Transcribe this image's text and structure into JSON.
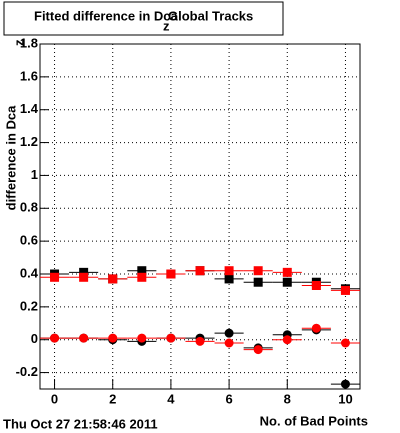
{
  "chart_data": {
    "type": "scatter",
    "title": "Fitted difference in Dca",
    "title_subscript": "z",
    "title_suffix": "Global Tracks",
    "y_label": "difference in Dca",
    "y_label_subscript": "z",
    "x_label": "No. of Bad Points",
    "timestamp": "Thu Oct 27 21:58:46 2011",
    "x": [
      0,
      1,
      2,
      3,
      4,
      5,
      6,
      7,
      8,
      9,
      10
    ],
    "series": [
      {
        "color": "#000000",
        "marker": "square",
        "values": [
          0.4,
          0.41,
          0.37,
          0.42,
          0.4,
          0.42,
          0.37,
          0.35,
          0.35,
          0.35,
          0.31
        ]
      },
      {
        "color": "#ff0000",
        "marker": "square",
        "values": [
          0.38,
          0.38,
          0.37,
          0.38,
          0.4,
          0.42,
          0.42,
          0.42,
          0.41,
          0.33,
          0.3
        ]
      },
      {
        "color": "#000000",
        "marker": "circle",
        "values": [
          0.01,
          0.01,
          0.0,
          -0.01,
          0.01,
          0.01,
          0.04,
          -0.05,
          0.03,
          0.06,
          -0.27
        ]
      },
      {
        "color": "#ff0000",
        "marker": "circle",
        "values": [
          0.01,
          0.01,
          0.01,
          0.01,
          0.01,
          -0.01,
          -0.02,
          -0.06,
          0.0,
          0.07,
          -0.02
        ]
      }
    ],
    "xlim": [
      -0.5,
      10.5
    ],
    "ylim": [
      -0.3,
      1.8
    ],
    "xticks": [
      0,
      2,
      4,
      6,
      8,
      10
    ],
    "yticks": [
      -0.2,
      0,
      0.2,
      0.4,
      0.6,
      0.8,
      1,
      1.2,
      1.4,
      1.6,
      1.8
    ],
    "grid": true
  }
}
